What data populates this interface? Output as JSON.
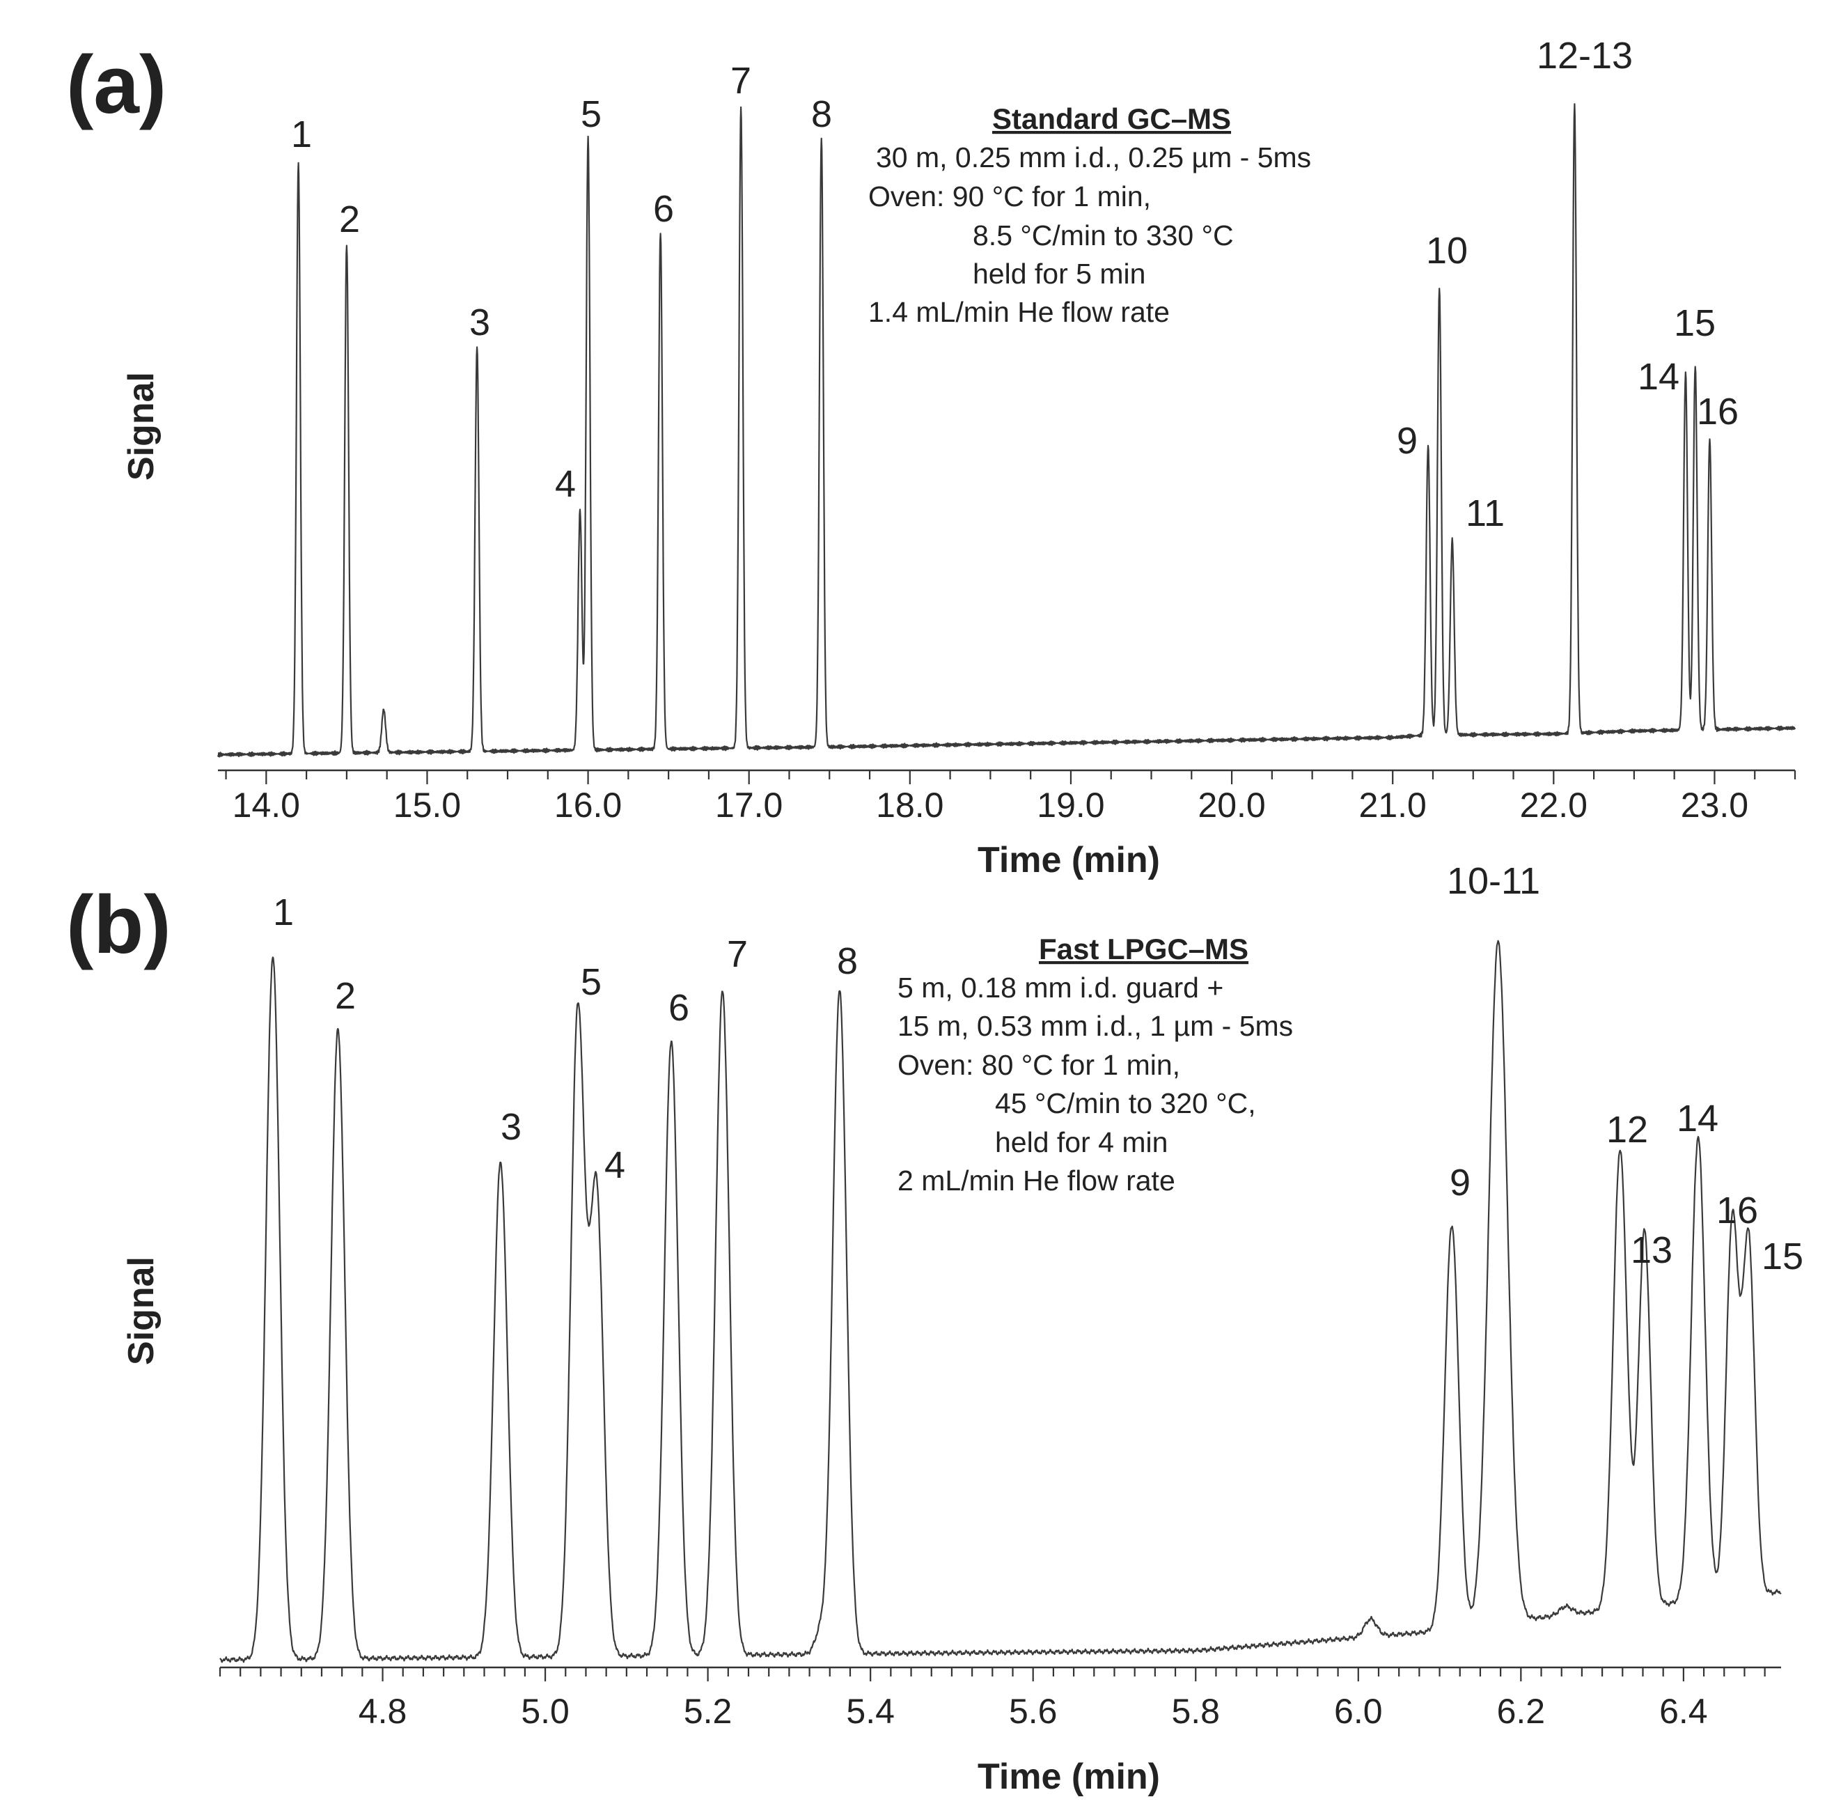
{
  "chart_data": [
    {
      "type": "line",
      "panel_label": "(a)",
      "title": "Standard GC–MS",
      "conditions": [
        "30 m, 0.25 mm i.d., 0.25 µm - 5ms",
        "Oven: 90 °C for 1 min,",
        "8.5 °C/min to 330 °C",
        "held for 5 min",
        "1.4 mL/min He flow rate"
      ],
      "xlabel": "Time (min)",
      "ylabel": "Signal",
      "xlim": [
        13.7,
        23.5
      ],
      "ylim": [
        0,
        100
      ],
      "x_ticks": [
        14.0,
        15.0,
        16.0,
        17.0,
        18.0,
        19.0,
        20.0,
        21.0,
        22.0,
        23.0
      ],
      "x_tick_labels": [
        "14.0",
        "15.0",
        "16.0",
        "17.0",
        "18.0",
        "19.0",
        "20.0",
        "21.0",
        "22.0",
        "23.0"
      ],
      "minor_tick_step": 0.25,
      "baseline": [
        [
          13.7,
          0.3
        ],
        [
          17.5,
          1.6
        ],
        [
          21.0,
          3.2
        ],
        [
          21.2,
          3.6
        ],
        [
          22.0,
          3.8
        ],
        [
          22.5,
          4.3
        ],
        [
          23.5,
          4.8
        ]
      ],
      "peaks": [
        {
          "label": "1",
          "time": 14.2,
          "height": 100.0,
          "width": 0.012
        },
        {
          "label": "2",
          "time": 14.5,
          "height": 86.0,
          "width": 0.012
        },
        {
          "label": "",
          "time": 14.73,
          "height": 7.3,
          "width": 0.012
        },
        {
          "label": "3",
          "time": 15.31,
          "height": 68.5,
          "width": 0.012
        },
        {
          "label": "4",
          "time": 15.95,
          "height": 40.5,
          "width": 0.012
        },
        {
          "label": "5",
          "time": 16.0,
          "height": 103.5,
          "width": 0.012
        },
        {
          "label": "6",
          "time": 16.45,
          "height": 87.5,
          "width": 0.012
        },
        {
          "label": "7",
          "time": 16.95,
          "height": 108.5,
          "width": 0.012
        },
        {
          "label": "8",
          "time": 17.45,
          "height": 103.0,
          "width": 0.012
        },
        {
          "label": "9",
          "time": 21.22,
          "height": 49.0,
          "width": 0.012
        },
        {
          "label": "10",
          "time": 21.29,
          "height": 75.5,
          "width": 0.012
        },
        {
          "label": "11",
          "time": 21.37,
          "height": 33.0,
          "width": 0.012
        },
        {
          "label": "12-13",
          "time": 22.13,
          "height": 106.5,
          "width": 0.012
        },
        {
          "label": "14",
          "time": 22.82,
          "height": 60.5,
          "width": 0.012
        },
        {
          "label": "15",
          "time": 22.88,
          "height": 61.5,
          "width": 0.012
        },
        {
          "label": "16",
          "time": 22.97,
          "height": 49.0,
          "width": 0.012
        }
      ]
    },
    {
      "type": "line",
      "panel_label": "(b)",
      "title": "Fast LPGC–MS",
      "conditions": [
        "5 m, 0.18 mm i.d. guard +",
        "15 m, 0.53 mm i.d., 1 µm - 5ms",
        "Oven: 80 °C for 1 min,",
        "45 °C/min to 320 °C,",
        "held for 4 min",
        "2 mL/min He flow rate"
      ],
      "xlabel": "Time (min)",
      "ylabel": "Signal",
      "xlim": [
        4.6,
        6.52
      ],
      "ylim": [
        0,
        100
      ],
      "x_ticks": [
        4.8,
        5.0,
        5.2,
        5.4,
        5.6,
        5.8,
        6.0,
        6.2,
        6.4
      ],
      "x_tick_labels": [
        "4.8",
        "5.0",
        "5.2",
        "5.4",
        "5.6",
        "5.8",
        "6.0",
        "6.2",
        "6.4"
      ],
      "minor_tick_step": 0.025,
      "baseline": [
        [
          4.6,
          0.3
        ],
        [
          5.8,
          1.6
        ],
        [
          6.08,
          4.2
        ],
        [
          6.2,
          6.0
        ],
        [
          6.52,
          10.0
        ]
      ],
      "peaks": [
        {
          "label": "1",
          "time": 4.665,
          "height": 100.0,
          "width": 0.0085
        },
        {
          "label": "2",
          "time": 4.745,
          "height": 89.5,
          "width": 0.0085
        },
        {
          "label": "3",
          "time": 4.945,
          "height": 70.5,
          "width": 0.0085
        },
        {
          "label": "5",
          "time": 5.04,
          "height": 91.5,
          "width": 0.0085
        },
        {
          "label": "4",
          "time": 5.063,
          "height": 66.0,
          "width": 0.0085
        },
        {
          "label": "6",
          "time": 5.155,
          "height": 87.5,
          "width": 0.0085
        },
        {
          "label": "7",
          "time": 5.218,
          "height": 94.5,
          "width": 0.0085
        },
        {
          "label": "",
          "time": 5.338,
          "height": 3.0,
          "width": 0.0065
        },
        {
          "label": "8",
          "time": 5.362,
          "height": 94.5,
          "width": 0.0085
        },
        {
          "label": "",
          "time": 6.015,
          "height": 2.5,
          "width": 0.0075
        },
        {
          "label": "9",
          "time": 6.115,
          "height": 57.5,
          "width": 0.0085
        },
        {
          "label": "10-11",
          "time": 6.172,
          "height": 97.0,
          "width": 0.0115
        },
        {
          "label": "",
          "time": 6.255,
          "height": 1.2,
          "width": 0.008
        },
        {
          "label": "12",
          "time": 6.322,
          "height": 65.5,
          "width": 0.0085
        },
        {
          "label": "13",
          "time": 6.352,
          "height": 53.5,
          "width": 0.0075
        },
        {
          "label": "14",
          "time": 6.418,
          "height": 66.0,
          "width": 0.0085
        },
        {
          "label": "16",
          "time": 6.46,
          "height": 53.5,
          "width": 0.0075
        },
        {
          "label": "15",
          "time": 6.48,
          "height": 50.5,
          "width": 0.0075
        }
      ]
    }
  ]
}
